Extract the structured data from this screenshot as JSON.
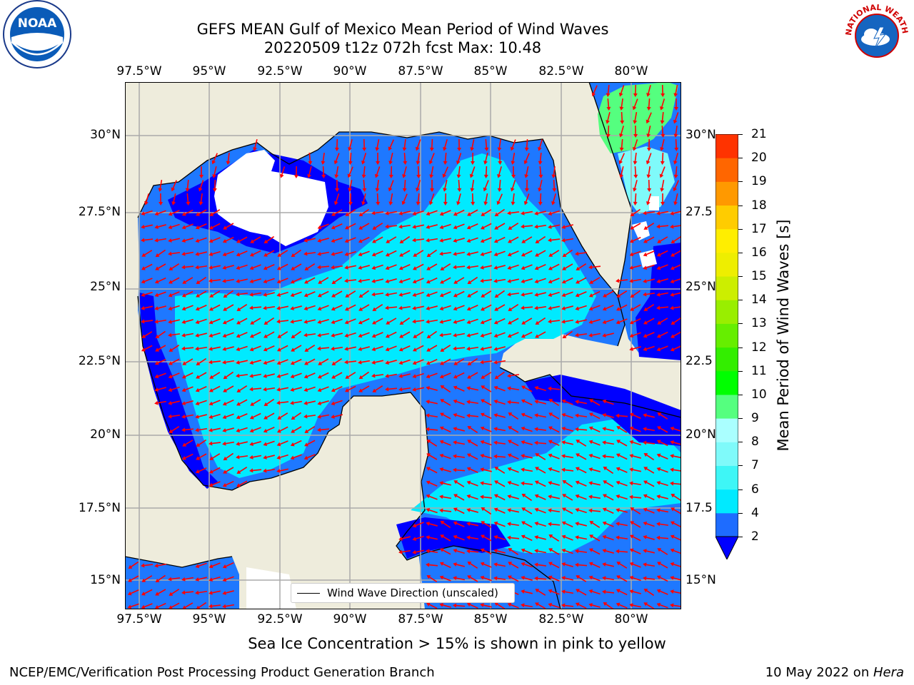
{
  "title": {
    "line1": "GEFS MEAN Gulf of Mexico Mean Period of Wind Waves",
    "line2": "20220509 t12z 072h fcst   Max: 10.48"
  },
  "logos": {
    "left": "NOAA",
    "right": "NATIONAL WEATHER SERVICE"
  },
  "axes": {
    "lon_labels": [
      "97.5°W",
      "95°W",
      "92.5°W",
      "90°W",
      "87.5°W",
      "85°W",
      "82.5°W",
      "80°W"
    ],
    "lat_labels_left": [
      "30°N",
      "27.5°N",
      "25°N",
      "22.5°N",
      "20°N",
      "17.5°N",
      "15°N"
    ],
    "lat_labels_right": [
      "30°N",
      "27.5",
      "25°N",
      "22.5",
      "20°N",
      "17.5",
      "15°N"
    ]
  },
  "legend": {
    "label": "Wind Wave Direction (unscaled)"
  },
  "colorbar": {
    "title": "Mean Period of Wind Waves [s]",
    "levels": [
      "2",
      "4",
      "6",
      "7",
      "8",
      "9",
      "10",
      "11",
      "12",
      "13",
      "14",
      "15",
      "16",
      "17",
      "18",
      "19",
      "20",
      "21"
    ],
    "colors": [
      "#1e6cff",
      "#00eaff",
      "#3ef6f6",
      "#7ffafa",
      "#aaffff",
      "#55ff7f",
      "#00ff00",
      "#33ee00",
      "#66ee00",
      "#99ee00",
      "#ccee00",
      "#eeee00",
      "#ffee00",
      "#ffcc00",
      "#ff9900",
      "#ff6600",
      "#ff3300",
      "#ff0000"
    ],
    "extend_color": "#0000ff"
  },
  "map_colors": {
    "land": "#eeecdc",
    "blue_deep": "#0000ff",
    "blue": "#1e78ff",
    "cyan": "#00eaff",
    "cyan_light": "#55fafa",
    "green": "#55ff7f",
    "arrow": "#ff0000"
  },
  "footer": {
    "sea_ice": "Sea Ice Concentration > 15% is shown in pink to yellow",
    "branch": "NCEP/EMC/Verification Post Processing Product Generation Branch",
    "date": "10 May 2022 on ",
    "host": "Hera"
  }
}
